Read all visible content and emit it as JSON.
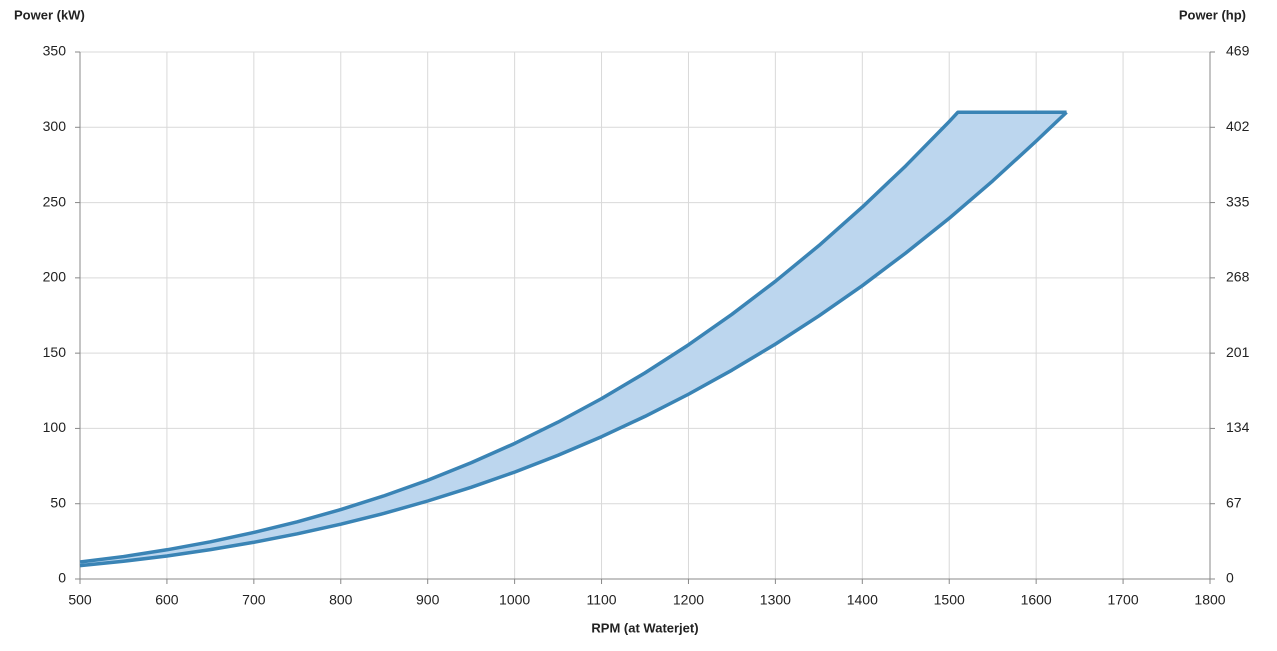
{
  "chart_data": {
    "type": "band",
    "y_label": "Power (kW)",
    "y2_label": "Power (hp)",
    "x_label": "RPM (at Waterjet)",
    "x": [
      500,
      550,
      600,
      650,
      700,
      750,
      800,
      850,
      900,
      950,
      1000,
      1050,
      1100,
      1150,
      1200,
      1250,
      1300,
      1350,
      1400,
      1450,
      1500,
      1510,
      1550,
      1600,
      1635
    ],
    "series": [
      {
        "color": "#3a84b5",
        "values": [
          11.3,
          14.9,
          19.4,
          24.7,
          30.9,
          38.0,
          46.1,
          55.3,
          65.6,
          77.2,
          90,
          104.2,
          119.8,
          136.9,
          155.5,
          175.8,
          197.7,
          221.4,
          247.0,
          274.4,
          303.8,
          310,
          310,
          310,
          310
        ]
      },
      {
        "color": "#3a84b5",
        "values": [
          8.9,
          11.8,
          15.3,
          19.5,
          24.4,
          30.0,
          36.4,
          43.6,
          51.8,
          60.9,
          71,
          82.2,
          94.5,
          108.0,
          122.7,
          138.7,
          156.0,
          174.7,
          194.8,
          216.5,
          239.6,
          244.5,
          264.4,
          290.8,
          310
        ]
      }
    ],
    "fill_color": "#bcd6ee",
    "xlim": [
      500,
      1800
    ],
    "xticks": [
      500,
      600,
      700,
      800,
      900,
      1000,
      1100,
      1200,
      1300,
      1400,
      1500,
      1600,
      1700,
      1800
    ],
    "ylim": [
      0,
      350
    ],
    "yticks": [
      0,
      50,
      100,
      150,
      200,
      250,
      300,
      350
    ],
    "y2lim": [
      0,
      469
    ],
    "y2ticks": [
      0,
      67,
      134,
      201,
      268,
      335,
      402,
      469
    ],
    "grid": true
  }
}
